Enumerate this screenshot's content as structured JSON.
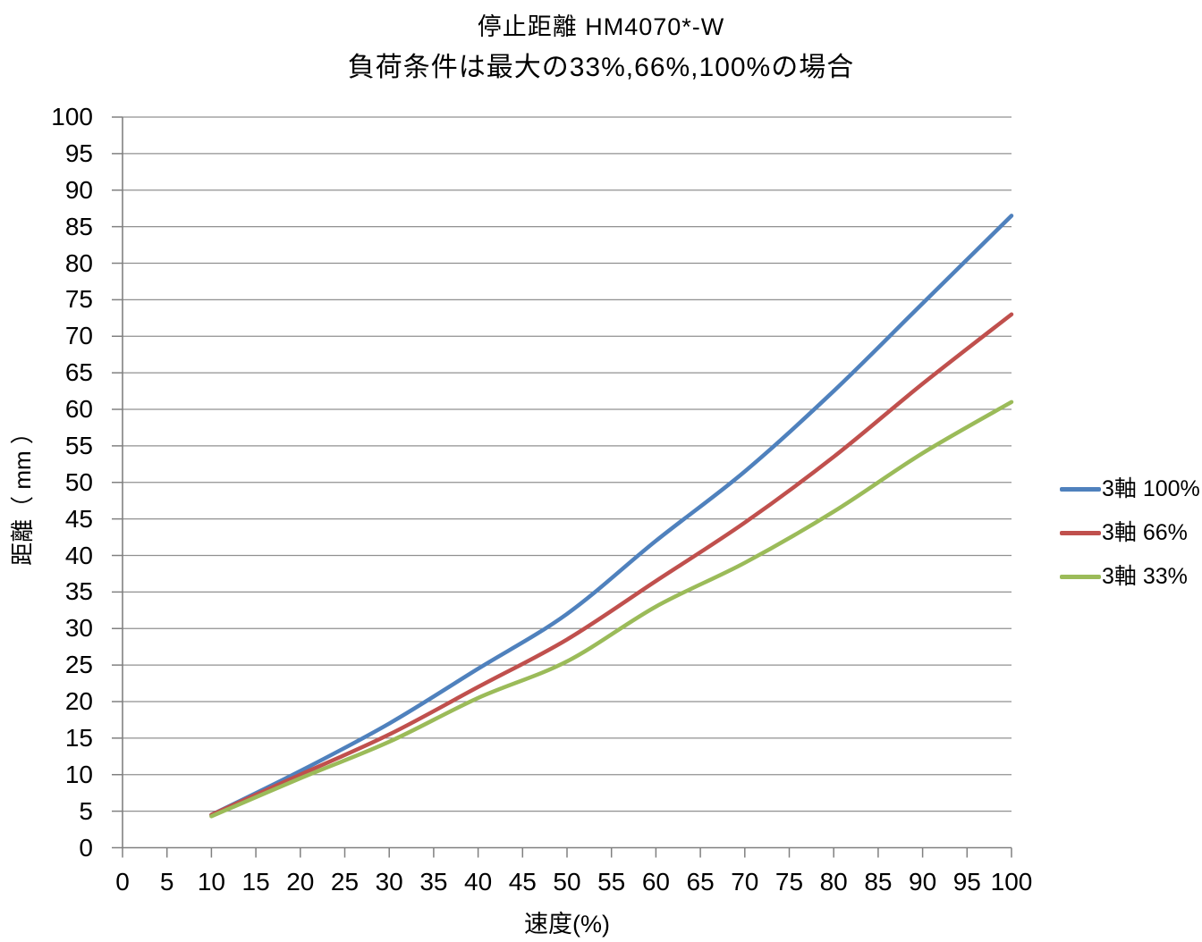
{
  "title": "停止距離 HM4070*-W",
  "subtitle": "負荷条件は最大の33%,66%,100%の場合",
  "colors": {
    "series_blue": "#4F81BD",
    "series_red": "#C0504D",
    "series_green": "#9BBB59",
    "gridline": "#909090",
    "axis": "#808080",
    "text": "#000000",
    "background": "#FFFFFF"
  },
  "chart_data": {
    "type": "line",
    "title": "停止距離 HM4070*-W",
    "subtitle": "負荷条件は最大の33%,66%,100%の場合",
    "xlabel": "速度(%)",
    "ylabel": "距離（ mm ）",
    "xlim": [
      0,
      100
    ],
    "ylim": [
      0,
      100
    ],
    "x_ticks": [
      0,
      5,
      10,
      15,
      20,
      25,
      30,
      35,
      40,
      45,
      50,
      55,
      60,
      65,
      70,
      75,
      80,
      85,
      90,
      95,
      100
    ],
    "y_ticks": [
      0,
      5,
      10,
      15,
      20,
      25,
      30,
      35,
      40,
      45,
      50,
      55,
      60,
      65,
      70,
      75,
      80,
      85,
      90,
      95,
      100
    ],
    "grid": "horizontal",
    "legend_position": "right",
    "x": [
      10,
      20,
      30,
      40,
      50,
      60,
      70,
      80,
      90,
      100
    ],
    "series": [
      {
        "name": "3軸 100%",
        "color": "#4F81BD",
        "values": [
          4.5,
          10.5,
          17,
          24.5,
          32,
          42,
          51.5,
          62.5,
          74.5,
          86.5
        ]
      },
      {
        "name": "3軸 66%",
        "color": "#C0504D",
        "values": [
          4.5,
          10,
          15.5,
          22,
          28.5,
          36.5,
          44.5,
          53.5,
          63.5,
          73
        ]
      },
      {
        "name": "3軸 33%",
        "color": "#9BBB59",
        "values": [
          4.3,
          9.5,
          14.5,
          20.5,
          25.5,
          33,
          39,
          46,
          54,
          61
        ]
      }
    ]
  }
}
